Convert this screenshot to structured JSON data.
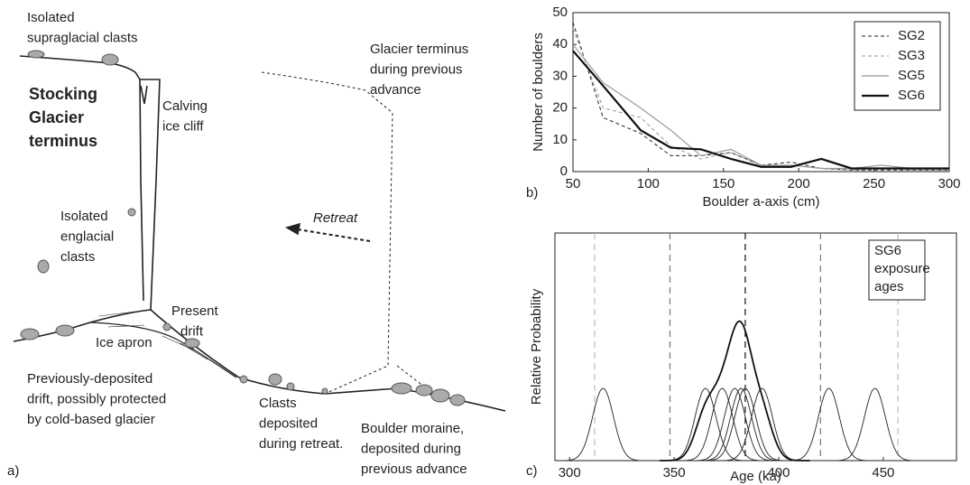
{
  "diagram": {
    "panel": "a)",
    "labels": [
      {
        "lines": [
          "Isolated",
          "supraglacial clasts"
        ]
      },
      {
        "lines": [
          "Stocking",
          "Glacier",
          "terminus"
        ],
        "bold": true
      },
      {
        "lines": [
          "Calving",
          "ice cliff"
        ]
      },
      {
        "lines": [
          "Glacier terminus",
          "during previous",
          "advance"
        ]
      },
      {
        "lines": [
          "Retreat"
        ],
        "italic": true
      },
      {
        "lines": [
          "Isolated",
          "englacial",
          "clasts"
        ]
      },
      {
        "lines": [
          "Present",
          "drift"
        ]
      },
      {
        "lines": [
          "Ice apron"
        ]
      },
      {
        "lines": [
          "Previously-deposited",
          "drift, possibly protected",
          "by cold-based glacier"
        ]
      },
      {
        "lines": [
          "Clasts",
          "deposited",
          "during retreat."
        ]
      },
      {
        "lines": [
          "Boulder moraine,",
          "deposited during",
          "previous advance"
        ]
      }
    ]
  },
  "chart_data": [
    {
      "type": "line",
      "panel": "b)",
      "x_label": "Boulder a-axis (cm)",
      "y_label": "Number of boulders",
      "x": [
        50,
        70,
        95,
        115,
        135,
        155,
        175,
        195,
        215,
        235,
        255,
        275,
        300
      ],
      "series": [
        {
          "name": "SG2",
          "color": "#222222",
          "dashed": true,
          "width": 1,
          "values": [
            47,
            17,
            12,
            5,
            5,
            6,
            2,
            3,
            1,
            0.5,
            0.5,
            0.5,
            0.5
          ]
        },
        {
          "name": "SG3",
          "color": "#999999",
          "dashed": true,
          "width": 1,
          "values": [
            45,
            20,
            17,
            8,
            4,
            6,
            2,
            2,
            1,
            0.5,
            1,
            0.5,
            0.5
          ]
        },
        {
          "name": "SG5",
          "color": "#999999",
          "dashed": false,
          "width": 1.2,
          "values": [
            40,
            28,
            20,
            13,
            5,
            7,
            2,
            2,
            1,
            1,
            2,
            1,
            1
          ]
        },
        {
          "name": "SG6",
          "color": "#111111",
          "dashed": false,
          "width": 2.2,
          "values": [
            38,
            27,
            13,
            7.5,
            7,
            4,
            1.5,
            1.5,
            4,
            1,
            1,
            1,
            1
          ]
        }
      ],
      "xlim": [
        50,
        300
      ],
      "ylim": [
        0,
        50
      ],
      "xticks": [
        50,
        100,
        150,
        200,
        250,
        300
      ],
      "yticks": [
        0,
        10,
        20,
        30,
        40,
        50
      ],
      "legend": "top-right"
    },
    {
      "type": "probability",
      "panel": "c)",
      "x_label": "Age (ka)",
      "y_label": "Relative Probability",
      "legend_lines": [
        "SG6",
        "exposure",
        "ages"
      ],
      "ages": [
        316,
        365,
        373,
        379,
        382,
        384,
        392,
        424,
        446
      ],
      "uncertainties": [
        5,
        5,
        5,
        5,
        5,
        5,
        5,
        5,
        5
      ],
      "reference_lines": [
        {
          "value": 312,
          "color": "#bbbbbb"
        },
        {
          "value": 348,
          "color": "#777777"
        },
        {
          "value": 384,
          "color": "#111111"
        },
        {
          "value": 420,
          "color": "#777777"
        },
        {
          "value": 457,
          "color": "#bbbbbb"
        }
      ],
      "xlim": [
        293,
        485
      ],
      "xticks": [
        300,
        350,
        400,
        450
      ]
    }
  ]
}
